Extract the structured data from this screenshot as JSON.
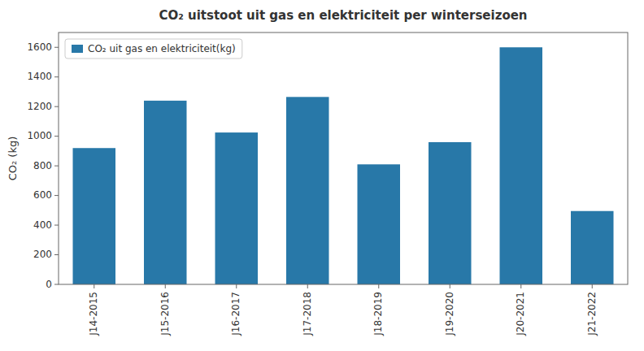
{
  "chart_data": {
    "type": "bar",
    "title": "CO₂ uitstoot uit gas en elektriciteit per winterseizoen",
    "categories": [
      "J14-2015",
      "J15-2016",
      "J16-2017",
      "J17-2018",
      "J18-2019",
      "J19-2020",
      "J20-2021",
      "J21-2022"
    ],
    "series": [
      {
        "name": "CO₂ uit gas en elektriciteit(kg)",
        "color": "#2878a8",
        "values": [
          920,
          1240,
          1025,
          1265,
          810,
          960,
          1600,
          495
        ]
      }
    ],
    "ylabel": "CO₂ (kg)",
    "ylim": [
      0,
      1700
    ],
    "yticks": [
      0,
      200,
      400,
      600,
      800,
      1000,
      1200,
      1400,
      1600
    ],
    "legend": "upper left",
    "grid": false
  }
}
